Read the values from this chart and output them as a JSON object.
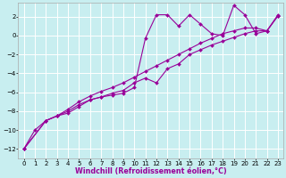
{
  "bg_color": "#c8eef0",
  "grid_color": "#ffffff",
  "line_color": "#990099",
  "xlim": [
    -0.5,
    23.5
  ],
  "ylim": [
    -13,
    3.5
  ],
  "xticks": [
    0,
    1,
    2,
    3,
    4,
    5,
    6,
    7,
    8,
    9,
    10,
    11,
    12,
    13,
    14,
    15,
    16,
    17,
    18,
    19,
    20,
    21,
    22,
    23
  ],
  "yticks": [
    -12,
    -10,
    -8,
    -6,
    -4,
    -2,
    0,
    2
  ],
  "line1_x": [
    0,
    1,
    2,
    3,
    4,
    5,
    6,
    7,
    8,
    9,
    10,
    11,
    12,
    13,
    14,
    15,
    16,
    17,
    18,
    19,
    20,
    21,
    22,
    23
  ],
  "line1_y": [
    -12,
    -10.0,
    -9.0,
    -8.5,
    -8.2,
    -7.5,
    -6.8,
    -6.5,
    -6.3,
    -6.1,
    -5.5,
    -0.3,
    2.2,
    2.2,
    1.0,
    2.2,
    1.2,
    0.2,
    0.0,
    3.2,
    2.2,
    0.2,
    0.5,
    2.2
  ],
  "line2_x": [
    0,
    2,
    3,
    4,
    5,
    6,
    7,
    8,
    9,
    10,
    11,
    12,
    13,
    14,
    15,
    16,
    17,
    18,
    19,
    20,
    21,
    22,
    23
  ],
  "line2_y": [
    -12,
    -9.0,
    -8.5,
    -8.0,
    -7.3,
    -6.8,
    -6.5,
    -6.1,
    -5.8,
    -5.0,
    -4.5,
    -5.0,
    -3.5,
    -3.0,
    -2.0,
    -1.5,
    -1.0,
    -0.6,
    -0.2,
    0.2,
    0.5,
    0.5,
    2.1
  ],
  "line3_x": [
    0,
    2,
    3,
    4,
    5,
    6,
    7,
    8,
    9,
    10,
    11,
    12,
    13,
    14,
    15,
    16,
    17,
    18,
    19,
    20,
    21,
    22,
    23
  ],
  "line3_y": [
    -12,
    -9.0,
    -8.5,
    -7.8,
    -7.0,
    -6.4,
    -5.9,
    -5.5,
    -5.0,
    -4.4,
    -3.8,
    -3.2,
    -2.6,
    -2.0,
    -1.4,
    -0.8,
    -0.3,
    0.2,
    0.5,
    0.8,
    0.8,
    0.5,
    2.1
  ],
  "marker": "D",
  "markersize": 2.0,
  "linewidth": 0.8,
  "xlabel": "Windchill (Refroidissement éolien,°C)",
  "xlabel_fontsize": 5.8,
  "tick_fontsize": 5.0,
  "xlabel_color": "#990099",
  "xlabel_bold": true
}
